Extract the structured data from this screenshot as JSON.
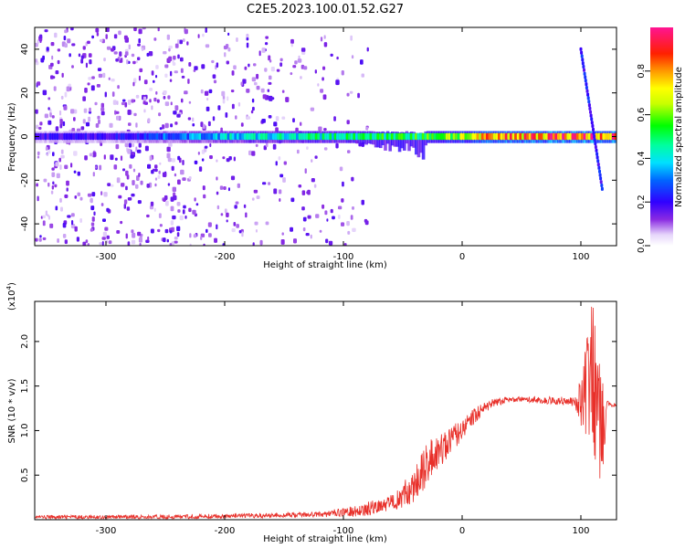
{
  "title": "C2E5.2023.100.01.52.G27",
  "chart_data": [
    {
      "type": "heatmap",
      "title": "C2E5.2023.100.01.52.G27",
      "xlabel": "Height of straight line (km)",
      "ylabel": "Frequency (Hz)",
      "xlim": [
        -360,
        130
      ],
      "ylim": [
        -50,
        50
      ],
      "xticks": [
        -300,
        -200,
        -100,
        0,
        100
      ],
      "xtick_labels": [
        "-300",
        "-200",
        "-100",
        "0",
        "100"
      ],
      "yticks": [
        -40,
        -20,
        0,
        20,
        40
      ],
      "ytick_labels": [
        "-40",
        "-20",
        "0",
        "20",
        "40"
      ],
      "colorbar": {
        "label": "Normalized spectral amplitude",
        "range": [
          0,
          1
        ],
        "ticks": [
          0.0,
          0.2,
          0.4,
          0.6,
          0.8
        ],
        "tick_labels": [
          "0.0",
          "0.2",
          "0.4",
          "0.6",
          "0.8"
        ],
        "colormap": "rainbow (white/violet at 0, through blue, cyan, green, yellow, orange, red, to magenta at 1)"
      },
      "features": [
        {
          "name": "central band",
          "x_range": [
            -360,
            130
          ],
          "frequency_hz": 0,
          "amplitude_at_x": [
            [
              -300,
              0.2
            ],
            [
              -200,
              0.4
            ],
            [
              -100,
              0.5
            ],
            [
              -50,
              0.55
            ],
            [
              0,
              0.7
            ],
            [
              50,
              0.9
            ],
            [
              100,
              0.95
            ],
            [
              130,
              0.9
            ]
          ]
        },
        {
          "name": "diagonal streak",
          "x_start": 100,
          "x_end": 118,
          "frequency_start_hz": 40,
          "frequency_end_hz": -24
        },
        {
          "name": "scatter noise",
          "x_range": [
            -360,
            -100
          ],
          "frequency_range_hz": [
            -50,
            50
          ],
          "amplitude": 0.15
        }
      ]
    },
    {
      "type": "line",
      "xlabel": "Height of straight line (km)",
      "ylabel": "SNR (10 * v/v)",
      "y_multiplier": "(x10",
      "y_multiplier_exp": "4",
      "y_multiplier_close": ")",
      "xlim": [
        -360,
        130
      ],
      "ylim": [
        0,
        2.45
      ],
      "xticks": [
        -300,
        -200,
        -100,
        0,
        100
      ],
      "xtick_labels": [
        "-300",
        "-200",
        "-100",
        "0",
        "100"
      ],
      "yticks": [
        0.5,
        1.0,
        1.5,
        2.0
      ],
      "ytick_labels": [
        "0.5",
        "1.0",
        "1.5",
        "2.0"
      ],
      "series": [
        {
          "name": "SNR",
          "color": "#e8302a",
          "x": [
            -360,
            -300,
            -250,
            -200,
            -150,
            -120,
            -100,
            -80,
            -60,
            -45,
            -35,
            -25,
            -15,
            -5,
            5,
            15,
            25,
            35,
            50,
            70,
            90,
            100,
            103,
            106,
            109,
            112,
            115,
            118,
            122,
            126,
            130
          ],
          "y": [
            0.03,
            0.03,
            0.03,
            0.04,
            0.05,
            0.06,
            0.08,
            0.12,
            0.2,
            0.32,
            0.5,
            0.7,
            0.82,
            0.95,
            1.1,
            1.22,
            1.3,
            1.34,
            1.35,
            1.34,
            1.33,
            1.3,
            1.4,
            1.6,
            1.8,
            1.5,
            1.2,
            1.0,
            1.28,
            1.3,
            1.3
          ],
          "noise_at_x": [
            [
              -360,
              0.02
            ],
            [
              -120,
              0.03
            ],
            [
              -60,
              0.1
            ],
            [
              -30,
              0.25
            ],
            [
              -10,
              0.15
            ],
            [
              20,
              0.06
            ],
            [
              40,
              0.03
            ],
            [
              95,
              0.05
            ],
            [
              100,
              0.3
            ],
            [
              110,
              0.9
            ],
            [
              118,
              0.6
            ],
            [
              122,
              0.05
            ],
            [
              130,
              0.03
            ]
          ]
        }
      ]
    }
  ]
}
